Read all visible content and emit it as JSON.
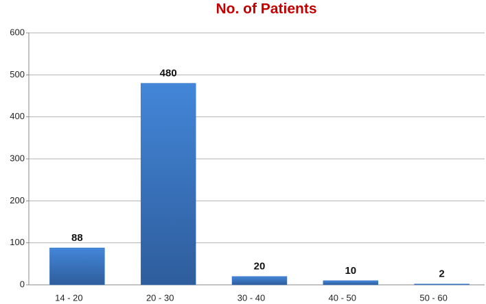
{
  "chart_data": {
    "type": "bar",
    "title": "No. of Patients",
    "categories": [
      "14 - 20",
      "20 - 30",
      "30 - 40",
      "40 - 50",
      "50 - 60"
    ],
    "values": [
      88,
      480,
      20,
      10,
      2
    ],
    "color": "#3a75c4",
    "ylim": [
      0,
      600
    ],
    "yticks": [
      0,
      100,
      200,
      300,
      400,
      500,
      600
    ],
    "grid": true,
    "data_labels": true
  }
}
